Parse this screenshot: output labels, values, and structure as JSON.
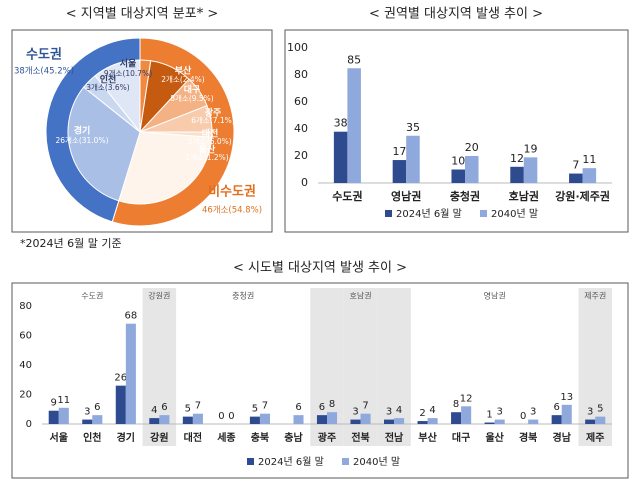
{
  "chart_data": [
    {
      "type": "pie",
      "title": "< 지역별 대상지역 분포* >",
      "note": "*2024년 6월 말 기준",
      "rings": [
        {
          "categories": [
            "비수도권",
            "수도권"
          ],
          "values": [
            46,
            38
          ],
          "value_labels": [
            "46개소(54.8%)",
            "38개소(45.2%)"
          ],
          "colors": [
            "#ed7d31",
            "#4472c4"
          ],
          "label_colors": [
            "#e0701f",
            "#2f5597"
          ]
        },
        {
          "categories": [
            "부산",
            "대구",
            "광주",
            "대전",
            "울산",
            null,
            "경기",
            "인천",
            "서울"
          ],
          "values": [
            2,
            8,
            6,
            5,
            1,
            24,
            26,
            3,
            9
          ],
          "value_labels": [
            "2개소(2.4%)",
            "8개소(9.5%)",
            "6개소(7.1%)",
            "5개소(6.0%)",
            "1개소(1.2%)",
            null,
            "26개소(31.0%)",
            "3개소(3.6%)",
            "9개소(10.7%)"
          ],
          "colors": [
            "#f08a40",
            "#c55a11",
            "#f4b183",
            "#f8cbad",
            "#fbe0cc",
            "#fff4ec",
            "#a9bfe6",
            "#c9d7f0",
            "#dfe7f6"
          ]
        }
      ]
    },
    {
      "type": "bar",
      "title": "< 권역별 대상지역 발생 추이 >",
      "categories": [
        "수도권",
        "영남권",
        "충청권",
        "호남권",
        "강원·제주권"
      ],
      "series": [
        {
          "name": "2024년 6월 말",
          "color": "#2f4b8f",
          "values": [
            38,
            17,
            10,
            12,
            7
          ]
        },
        {
          "name": "2040년 말",
          "color": "#8fa9dc",
          "values": [
            85,
            35,
            20,
            19,
            11
          ]
        }
      ],
      "ylim": [
        0,
        100
      ],
      "yticks": [
        0,
        20,
        40,
        60,
        80,
        100
      ]
    },
    {
      "type": "bar",
      "title": "< 시도별 대상지역 발생 추이 >",
      "categories": [
        "서울",
        "인천",
        "경기",
        "강원",
        "대전",
        "세종",
        "충북",
        "충남",
        "광주",
        "전북",
        "전남",
        "부산",
        "대구",
        "울산",
        "경북",
        "경남",
        "제주"
      ],
      "category_groups": [
        "수도권",
        "수도권",
        "수도권",
        "강원권",
        "충청권",
        "충청권",
        "충청권",
        "충청권",
        "호남권",
        "호남권",
        "호남권",
        "영남권",
        "영남권",
        "영남권",
        "영남권",
        "영남권",
        "제주권"
      ],
      "shaded_groups": [
        "강원권",
        "호남권",
        "제주권"
      ],
      "series": [
        {
          "name": "2024년 6월 말",
          "color": "#2f4b8f",
          "values": [
            9,
            3,
            26,
            4,
            5,
            0,
            5,
            null,
            6,
            3,
            3,
            2,
            8,
            1,
            0,
            6,
            3
          ]
        },
        {
          "name": "2040년 말",
          "color": "#8fa9dc",
          "values": [
            11,
            6,
            68,
            6,
            7,
            0,
            7,
            6,
            8,
            7,
            4,
            4,
            12,
            3,
            3,
            13,
            5
          ]
        }
      ],
      "ylim": [
        0,
        80
      ],
      "yticks": [
        0,
        20,
        40,
        60,
        80
      ]
    }
  ]
}
